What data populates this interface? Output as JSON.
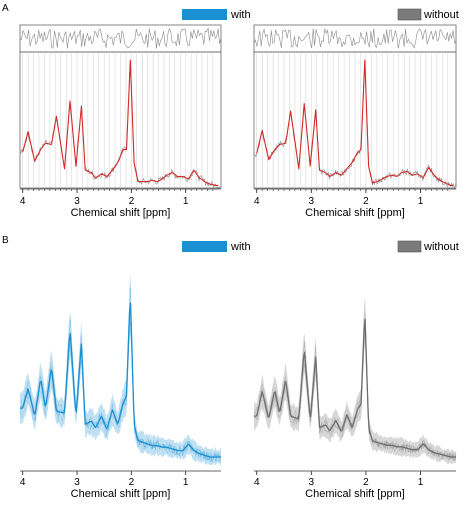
{
  "panels": {
    "a": {
      "label": "A",
      "legend_with": "with",
      "legend_without": "without"
    },
    "b": {
      "label": "B",
      "legend_with": "with",
      "legend_without": "without"
    }
  },
  "colors": {
    "with_fit": "#d62a2a",
    "with_band": "#1a8fd1",
    "without_band": "#6e6e6e",
    "data": "#8a8a8a",
    "grid": "#d0d0d0"
  },
  "chart_data": [
    {
      "type": "line",
      "panel": "A",
      "title": "",
      "xlabel": "Chemical shift [ppm]",
      "ylabel": "",
      "x_reversed": true,
      "xlim": [
        4.05,
        0.35
      ],
      "xticks": [
        4,
        3,
        2,
        1
      ],
      "legend": "with",
      "legend_placement": "top-right",
      "grid": true,
      "series": [
        {
          "name": "with",
          "x": [
            4.0,
            3.9,
            3.78,
            3.67,
            3.58,
            3.47,
            3.38,
            3.23,
            3.13,
            3.02,
            2.92,
            2.85,
            2.74,
            2.66,
            2.55,
            2.45,
            2.35,
            2.25,
            2.15,
            2.09,
            2.02,
            1.95,
            1.88,
            1.79,
            1.7,
            1.62,
            1.52,
            1.43,
            1.35,
            1.25,
            1.15,
            1.05,
            0.95,
            0.85,
            0.75,
            0.65,
            0.55,
            0.45,
            0.4
          ],
          "y": [
            0.28,
            0.44,
            0.21,
            0.3,
            0.35,
            0.34,
            0.56,
            0.15,
            0.68,
            0.17,
            0.64,
            0.14,
            0.12,
            0.08,
            0.11,
            0.09,
            0.14,
            0.2,
            0.3,
            0.3,
            1.0,
            0.2,
            0.05,
            0.05,
            0.05,
            0.06,
            0.05,
            0.07,
            0.1,
            0.12,
            0.09,
            0.09,
            0.07,
            0.14,
            0.08,
            0.05,
            0.03,
            0.02,
            0.02
          ]
        }
      ]
    },
    {
      "type": "line",
      "panel": "A",
      "title": "",
      "xlabel": "Chemical shift [ppm]",
      "ylabel": "",
      "x_reversed": true,
      "xlim": [
        4.05,
        0.35
      ],
      "xticks": [
        4,
        3,
        2,
        1
      ],
      "legend": "without",
      "legend_placement": "top-right",
      "grid": true,
      "series": [
        {
          "name": "without",
          "x": [
            4.0,
            3.9,
            3.78,
            3.67,
            3.58,
            3.47,
            3.38,
            3.23,
            3.13,
            3.02,
            2.92,
            2.85,
            2.74,
            2.66,
            2.55,
            2.45,
            2.35,
            2.25,
            2.15,
            2.09,
            2.02,
            1.95,
            1.88,
            1.79,
            1.7,
            1.62,
            1.52,
            1.43,
            1.35,
            1.25,
            1.15,
            1.05,
            0.95,
            0.85,
            0.75,
            0.65,
            0.55,
            0.45,
            0.4
          ],
          "y": [
            0.27,
            0.45,
            0.22,
            0.3,
            0.34,
            0.35,
            0.6,
            0.15,
            0.66,
            0.17,
            0.61,
            0.14,
            0.12,
            0.09,
            0.12,
            0.1,
            0.15,
            0.2,
            0.28,
            0.3,
            1.0,
            0.17,
            0.04,
            0.05,
            0.07,
            0.09,
            0.1,
            0.09,
            0.12,
            0.13,
            0.1,
            0.11,
            0.08,
            0.16,
            0.1,
            0.06,
            0.04,
            0.02,
            0.02
          ]
        }
      ]
    },
    {
      "type": "area",
      "panel": "B",
      "title": "",
      "xlabel": "Chemical shift [ppm]",
      "ylabel": "",
      "x_reversed": true,
      "xlim": [
        4.05,
        0.35
      ],
      "xticks": [
        4,
        3,
        2,
        1
      ],
      "legend": "with",
      "legend_placement": "top-right",
      "series": [
        {
          "name": "with",
          "x": [
            4.0,
            3.9,
            3.78,
            3.67,
            3.58,
            3.47,
            3.38,
            3.23,
            3.13,
            3.02,
            2.92,
            2.85,
            2.74,
            2.66,
            2.55,
            2.45,
            2.35,
            2.25,
            2.15,
            2.09,
            2.02,
            1.95,
            1.88,
            1.79,
            1.7,
            1.62,
            1.52,
            1.43,
            1.35,
            1.25,
            1.15,
            1.05,
            0.95,
            0.85,
            0.75,
            0.65,
            0.55,
            0.45,
            0.4
          ],
          "y": [
            0.3,
            0.42,
            0.25,
            0.48,
            0.3,
            0.55,
            0.28,
            0.27,
            0.78,
            0.25,
            0.7,
            0.2,
            0.22,
            0.18,
            0.25,
            0.17,
            0.29,
            0.2,
            0.33,
            0.37,
            1.0,
            0.2,
            0.1,
            0.09,
            0.08,
            0.07,
            0.07,
            0.06,
            0.06,
            0.05,
            0.04,
            0.04,
            0.08,
            0.04,
            0.02,
            0.01,
            0.0,
            0.0,
            0.0
          ]
        }
      ]
    },
    {
      "type": "area",
      "panel": "B",
      "title": "",
      "xlabel": "Chemical shift [ppm]",
      "ylabel": "",
      "x_reversed": true,
      "xlim": [
        4.05,
        0.35
      ],
      "xticks": [
        4,
        3,
        2,
        1
      ],
      "legend": "without",
      "legend_placement": "top-right",
      "series": [
        {
          "name": "without",
          "x": [
            4.0,
            3.9,
            3.78,
            3.67,
            3.58,
            3.47,
            3.38,
            3.23,
            3.13,
            3.02,
            2.92,
            2.85,
            2.74,
            2.66,
            2.55,
            2.45,
            2.35,
            2.25,
            2.15,
            2.09,
            2.02,
            1.95,
            1.88,
            1.79,
            1.7,
            1.62,
            1.52,
            1.43,
            1.35,
            1.25,
            1.15,
            1.05,
            0.95,
            0.85,
            0.75,
            0.65,
            0.55,
            0.45,
            0.4
          ],
          "y": [
            0.28,
            0.45,
            0.26,
            0.46,
            0.3,
            0.53,
            0.28,
            0.26,
            0.74,
            0.25,
            0.69,
            0.2,
            0.22,
            0.18,
            0.25,
            0.17,
            0.29,
            0.2,
            0.33,
            0.36,
            1.0,
            0.2,
            0.11,
            0.1,
            0.09,
            0.08,
            0.08,
            0.07,
            0.07,
            0.06,
            0.05,
            0.05,
            0.09,
            0.05,
            0.03,
            0.02,
            0.01,
            0.0,
            0.0
          ]
        }
      ]
    }
  ]
}
